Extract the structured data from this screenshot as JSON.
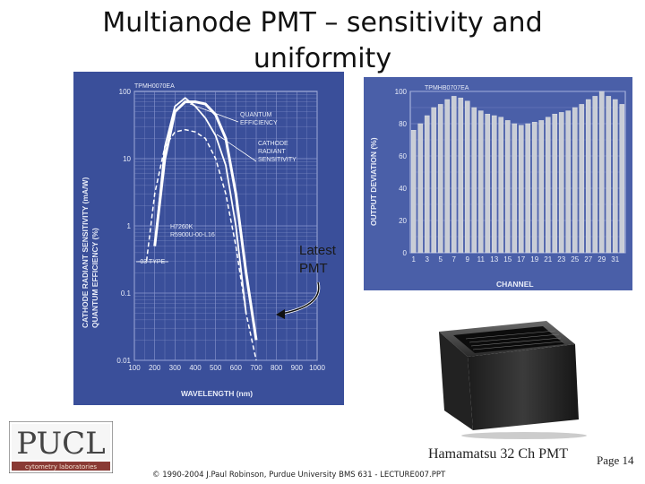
{
  "slide": {
    "title": "Multianode PMT – sensitivity and uniformity",
    "annotation": "Latest PMT",
    "caption": "Hamamatsu 32 Ch PMT",
    "page": "Page 14",
    "footer": "© 1990-2004 J.Paul Robinson, Purdue University BMS 631 - LECTURE007.PPT"
  },
  "logo": {
    "text": "PUCL",
    "subtitle": "cytometry laboratories"
  },
  "chart_data": [
    {
      "type": "line",
      "tag": "TPMH0070EA",
      "xlabel": "WAVELENGTH (nm)",
      "ylabel": "CATHODE RADIANT SENSITIVITY (mA/W) QUANTUM EFFICIENCY (%)",
      "x_ticks": [
        "100",
        "200",
        "300",
        "400",
        "500",
        "600",
        "700",
        "800",
        "900",
        "1000"
      ],
      "y_ticks": [
        "100",
        "10",
        "1",
        "0.1",
        "0.01"
      ],
      "xlim": [
        100,
        1000
      ],
      "ylim": [
        0.01,
        100
      ],
      "y_scale": "log",
      "labels": [
        "QUANTUM EFFICIENCY",
        "CATHODE RADIANT SENSITIVITY",
        "H7260K R5900U-00-L16",
        "-03 TYPE"
      ],
      "series": [
        {
          "name": "CATHODE RADIANT SENSITIVITY",
          "x": [
            200,
            250,
            300,
            350,
            400,
            450,
            500,
            550,
            600,
            650,
            700
          ],
          "y": [
            0.5,
            10,
            50,
            70,
            70,
            65,
            45,
            20,
            3,
            0.2,
            0.02
          ]
        },
        {
          "name": "QUANTUM EFFICIENCY",
          "x": [
            200,
            250,
            300,
            350,
            400,
            450,
            500,
            550,
            600,
            650
          ],
          "y": [
            0.5,
            15,
            60,
            80,
            60,
            40,
            22,
            8,
            1,
            0.05
          ]
        },
        {
          "name": "-03 TYPE",
          "x": [
            160,
            200,
            250,
            300,
            350,
            400,
            450,
            500,
            550,
            600,
            650,
            700
          ],
          "y": [
            0.3,
            3,
            15,
            25,
            27,
            25,
            20,
            10,
            3,
            0.5,
            0.05,
            0.01
          ]
        }
      ]
    },
    {
      "type": "bar",
      "tag": "TPMHB0707EA",
      "xlabel": "CHANNEL",
      "ylabel": "OUTPUT DEVIATION (%)",
      "x_ticks": [
        "1",
        "3",
        "5",
        "7",
        "9",
        "11",
        "13",
        "15",
        "17",
        "19",
        "21",
        "23",
        "25",
        "27",
        "29",
        "31"
      ],
      "y_ticks": [
        "0",
        "20",
        "40",
        "60",
        "80",
        "100"
      ],
      "ylim": [
        0,
        100
      ],
      "categories": [
        "1",
        "2",
        "3",
        "4",
        "5",
        "6",
        "7",
        "8",
        "9",
        "10",
        "11",
        "12",
        "13",
        "14",
        "15",
        "16",
        "17",
        "18",
        "19",
        "20",
        "21",
        "22",
        "23",
        "24",
        "25",
        "26",
        "27",
        "28",
        "29",
        "30",
        "31",
        "32"
      ],
      "values": [
        76,
        80,
        85,
        90,
        92,
        95,
        97,
        96,
        94,
        90,
        88,
        86,
        85,
        84,
        82,
        80,
        79,
        80,
        81,
        82,
        84,
        86,
        87,
        88,
        90,
        92,
        95,
        97,
        100,
        97,
        95,
        92
      ]
    }
  ]
}
